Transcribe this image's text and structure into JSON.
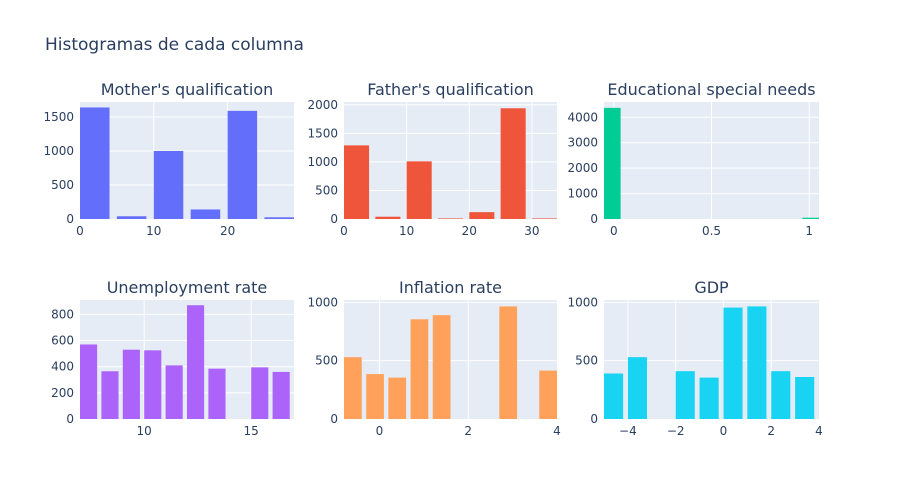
{
  "title": "Histogramas de cada columna",
  "colors": {
    "plot_bg": "#e5ecf6",
    "paper_bg": "#ffffff",
    "text": "#2a3f5f",
    "grid": "#ffffff"
  },
  "chart_data": [
    {
      "type": "bar",
      "title": "Mother's qualification",
      "color": "#636efa",
      "xlim": [
        0,
        29
      ],
      "ylim": [
        0,
        1720
      ],
      "xticks": [
        {
          "v": 0,
          "label": "0"
        },
        {
          "v": 10,
          "label": "10"
        },
        {
          "v": 20,
          "label": "20"
        }
      ],
      "yticks": [
        {
          "v": 0,
          "label": "0"
        },
        {
          "v": 500,
          "label": "500"
        },
        {
          "v": 1000,
          "label": "1000"
        },
        {
          "v": 1500,
          "label": "1500"
        }
      ],
      "bins": [
        {
          "x0": 0,
          "x1": 4,
          "value": 1640
        },
        {
          "x0": 5,
          "x1": 9,
          "value": 40
        },
        {
          "x0": 10,
          "x1": 14,
          "value": 1000
        },
        {
          "x0": 15,
          "x1": 19,
          "value": 140
        },
        {
          "x0": 20,
          "x1": 24,
          "value": 1590
        },
        {
          "x0": 25,
          "x1": 29,
          "value": 25
        }
      ]
    },
    {
      "type": "bar",
      "title": "Father's qualification",
      "color": "#ef553b",
      "xlim": [
        0,
        34
      ],
      "ylim": [
        0,
        2050
      ],
      "xticks": [
        {
          "v": 0,
          "label": "0"
        },
        {
          "v": 10,
          "label": "10"
        },
        {
          "v": 20,
          "label": "20"
        },
        {
          "v": 30,
          "label": "30"
        }
      ],
      "yticks": [
        {
          "v": 0,
          "label": "0"
        },
        {
          "v": 500,
          "label": "500"
        },
        {
          "v": 1000,
          "label": "1000"
        },
        {
          "v": 1500,
          "label": "1500"
        },
        {
          "v": 2000,
          "label": "2000"
        }
      ],
      "bins": [
        {
          "x0": 0,
          "x1": 4,
          "value": 1290
        },
        {
          "x0": 5,
          "x1": 9,
          "value": 40
        },
        {
          "x0": 10,
          "x1": 14,
          "value": 1010
        },
        {
          "x0": 15,
          "x1": 19,
          "value": 10
        },
        {
          "x0": 20,
          "x1": 24,
          "value": 120
        },
        {
          "x0": 25,
          "x1": 29,
          "value": 1940
        },
        {
          "x0": 30,
          "x1": 34,
          "value": 10
        }
      ]
    },
    {
      "type": "bar",
      "title": "Educational special needs",
      "color": "#00cc96",
      "xlim": [
        -0.05,
        1.05
      ],
      "ylim": [
        0,
        4600
      ],
      "xticks": [
        {
          "v": 0,
          "label": "0"
        },
        {
          "v": 0.5,
          "label": "0.5"
        },
        {
          "v": 1,
          "label": "1"
        }
      ],
      "yticks": [
        {
          "v": 0,
          "label": "0"
        },
        {
          "v": 1000,
          "label": "1000"
        },
        {
          "v": 2000,
          "label": "2000"
        },
        {
          "v": 3000,
          "label": "3000"
        },
        {
          "v": 4000,
          "label": "4000"
        }
      ],
      "bins": [
        {
          "x0": -0.05,
          "x1": 0.035,
          "value": 4370
        },
        {
          "x0": 0.965,
          "x1": 1.05,
          "value": 50
        }
      ]
    },
    {
      "type": "bar",
      "title": "Unemployment rate",
      "color": "#ab63fa",
      "xlim": [
        7,
        17
      ],
      "ylim": [
        0,
        910
      ],
      "xticks": [
        {
          "v": 10,
          "label": "10"
        },
        {
          "v": 15,
          "label": "15"
        }
      ],
      "yticks": [
        {
          "v": 0,
          "label": "0"
        },
        {
          "v": 200,
          "label": "200"
        },
        {
          "v": 400,
          "label": "400"
        },
        {
          "v": 600,
          "label": "600"
        },
        {
          "v": 800,
          "label": "800"
        }
      ],
      "bins": [
        {
          "x0": 7,
          "x1": 7.8,
          "value": 570
        },
        {
          "x0": 8,
          "x1": 8.8,
          "value": 365
        },
        {
          "x0": 9,
          "x1": 9.8,
          "value": 530
        },
        {
          "x0": 10,
          "x1": 10.8,
          "value": 525
        },
        {
          "x0": 11,
          "x1": 11.8,
          "value": 410
        },
        {
          "x0": 12,
          "x1": 12.8,
          "value": 870
        },
        {
          "x0": 13,
          "x1": 13.8,
          "value": 385
        },
        {
          "x0": 15,
          "x1": 15.8,
          "value": 395
        },
        {
          "x0": 16,
          "x1": 16.8,
          "value": 360
        }
      ]
    },
    {
      "type": "bar",
      "title": "Inflation rate",
      "color": "#ffa15a",
      "xlim": [
        -0.8,
        4
      ],
      "ylim": [
        0,
        1020
      ],
      "xticks": [
        {
          "v": 0,
          "label": "0"
        },
        {
          "v": 2,
          "label": "2"
        },
        {
          "v": 4,
          "label": "4"
        }
      ],
      "yticks": [
        {
          "v": 0,
          "label": "0"
        },
        {
          "v": 500,
          "label": "500"
        },
        {
          "v": 1000,
          "label": "1000"
        }
      ],
      "bins": [
        {
          "x0": -0.8,
          "x1": -0.4,
          "value": 530
        },
        {
          "x0": -0.3,
          "x1": 0.1,
          "value": 385
        },
        {
          "x0": 0.2,
          "x1": 0.6,
          "value": 355
        },
        {
          "x0": 0.7,
          "x1": 1.1,
          "value": 855
        },
        {
          "x0": 1.2,
          "x1": 1.6,
          "value": 890
        },
        {
          "x0": 2.7,
          "x1": 3.1,
          "value": 965
        },
        {
          "x0": 3.6,
          "x1": 4.0,
          "value": 415
        }
      ]
    },
    {
      "type": "bar",
      "title": "GDP",
      "color": "#19d3f3",
      "xlim": [
        -5,
        4
      ],
      "ylim": [
        0,
        1020
      ],
      "xticks": [
        {
          "v": -4,
          "label": "−4"
        },
        {
          "v": -2,
          "label": "−2"
        },
        {
          "v": 0,
          "label": "0"
        },
        {
          "v": 2,
          "label": "2"
        },
        {
          "v": 4,
          "label": "4"
        }
      ],
      "yticks": [
        {
          "v": 0,
          "label": "0"
        },
        {
          "v": 500,
          "label": "500"
        },
        {
          "v": 1000,
          "label": "1000"
        }
      ],
      "bins": [
        {
          "x0": -5,
          "x1": -4.2,
          "value": 390
        },
        {
          "x0": -4,
          "x1": -3.2,
          "value": 530
        },
        {
          "x0": -2,
          "x1": -1.2,
          "value": 410
        },
        {
          "x0": -1,
          "x1": -0.2,
          "value": 355
        },
        {
          "x0": 0,
          "x1": 0.8,
          "value": 955
        },
        {
          "x0": 1,
          "x1": 1.8,
          "value": 965
        },
        {
          "x0": 2,
          "x1": 2.8,
          "value": 410
        },
        {
          "x0": 3,
          "x1": 3.8,
          "value": 360
        }
      ]
    }
  ]
}
